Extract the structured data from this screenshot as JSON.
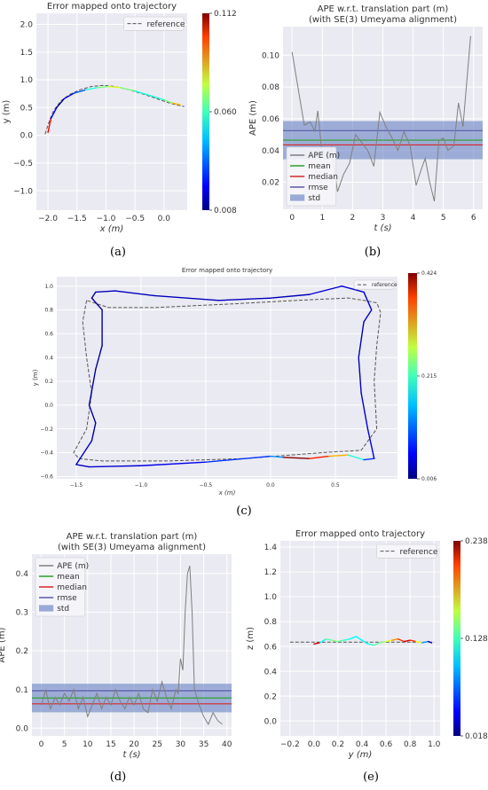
{
  "panels": [
    {
      "id": "a",
      "label": "(a)"
    },
    {
      "id": "b",
      "label": "(b)"
    },
    {
      "id": "c",
      "label": "(c)"
    },
    {
      "id": "d",
      "label": "(d)"
    },
    {
      "id": "e",
      "label": "(e)"
    }
  ],
  "chart_data": [
    {
      "id": "a",
      "type": "trajectory",
      "title": "Error mapped onto trajectory",
      "xlabel": "x (m)",
      "ylabel": "y (m)",
      "xlim": [
        -2.2,
        0.4
      ],
      "ylim": [
        -1.35,
        2.2
      ],
      "xticks": [
        -2.0,
        -1.5,
        -1.0,
        -0.5,
        0.0
      ],
      "yticks": [
        -1.0,
        -0.5,
        0.0,
        0.5,
        1.0,
        1.5,
        2.0
      ],
      "xtick_labels": [
        "−2.0",
        "−1.5",
        "−1.0",
        "−0.5",
        "0.0"
      ],
      "ytick_labels": [
        "−1.0",
        "−0.5",
        "0.0",
        "0.5",
        "1.0",
        "1.5",
        "2.0"
      ],
      "legend": [
        "reference"
      ],
      "legend_position": "top-right",
      "colorbar": {
        "min": 0.008,
        "mid": 0.06,
        "max": 0.112,
        "labels": [
          "0.008",
          "0.060",
          "0.112"
        ]
      },
      "reference": {
        "x": [
          -2.05,
          -1.98,
          -1.9,
          -1.78,
          -1.62,
          -1.45,
          -1.25,
          -1.05,
          -0.85,
          -0.6,
          -0.35,
          -0.1,
          0.1,
          0.25,
          0.35
        ],
        "y": [
          0.02,
          0.25,
          0.45,
          0.62,
          0.74,
          0.82,
          0.88,
          0.9,
          0.88,
          0.82,
          0.74,
          0.65,
          0.58,
          0.54,
          0.52
        ]
      },
      "estimate": {
        "x": [
          -2.0,
          -1.95,
          -1.85,
          -1.72,
          -1.55,
          -1.35,
          -1.15,
          -0.95,
          -0.75,
          -0.5,
          -0.25,
          0.0,
          0.15,
          0.28
        ],
        "y": [
          0.05,
          0.3,
          0.5,
          0.66,
          0.76,
          0.82,
          0.86,
          0.88,
          0.86,
          0.8,
          0.72,
          0.64,
          0.58,
          0.55
        ],
        "error": [
          0.1,
          0.02,
          0.01,
          0.02,
          0.03,
          0.05,
          0.06,
          0.07,
          0.06,
          0.05,
          0.05,
          0.06,
          0.08,
          0.11
        ]
      }
    },
    {
      "id": "b",
      "type": "line",
      "title": "APE w.r.t. translation part (m)",
      "subtitle": "(with SE(3) Umeyama alignment)",
      "xlabel": "t (s)",
      "ylabel": "APE (m)",
      "xlim": [
        -0.3,
        6.3
      ],
      "ylim": [
        0.003,
        0.118
      ],
      "xticks": [
        0,
        1,
        2,
        3,
        4,
        5,
        6
      ],
      "yticks": [
        0.02,
        0.04,
        0.06,
        0.08,
        0.1
      ],
      "xtick_labels": [
        "0",
        "1",
        "2",
        "3",
        "4",
        "5",
        "6"
      ],
      "ytick_labels": [
        "0.02",
        "0.04",
        "0.06",
        "0.08",
        "0.10"
      ],
      "legend": [
        "APE (m)",
        "mean",
        "median",
        "rmse",
        "std"
      ],
      "legend_position": "bottom-left",
      "x": [
        0,
        0.4,
        0.6,
        0.75,
        0.85,
        1.0,
        1.15,
        1.3,
        1.5,
        1.7,
        1.9,
        2.1,
        2.3,
        2.5,
        2.7,
        2.9,
        3.1,
        3.3,
        3.5,
        3.7,
        3.9,
        4.1,
        4.25,
        4.4,
        4.55,
        4.7,
        4.85,
        5.0,
        5.15,
        5.35,
        5.5,
        5.65,
        5.9
      ],
      "y": [
        0.102,
        0.056,
        0.058,
        0.052,
        0.065,
        0.036,
        0.035,
        0.042,
        0.014,
        0.025,
        0.032,
        0.05,
        0.045,
        0.04,
        0.03,
        0.064,
        0.055,
        0.048,
        0.04,
        0.052,
        0.043,
        0.018,
        0.027,
        0.035,
        0.02,
        0.008,
        0.046,
        0.048,
        0.04,
        0.043,
        0.07,
        0.055,
        0.112
      ],
      "mean": 0.0465,
      "median": 0.0435,
      "rmse": 0.0525,
      "std_band": [
        0.0345,
        0.0585
      ],
      "colors": {
        "ape": "#7f7f7f",
        "mean": "#2ca02c",
        "median": "#d62728",
        "rmse": "#5a5aa8",
        "std": "#5b78c0"
      }
    },
    {
      "id": "c",
      "type": "trajectory",
      "title": "Error mapped onto trajectory",
      "xlabel": "x (m)",
      "ylabel": "y (m)",
      "xlim": [
        -1.65,
        0.98
      ],
      "ylim": [
        -0.62,
        1.08
      ],
      "xticks": [
        -1.5,
        -1.0,
        -0.5,
        0.0,
        0.5
      ],
      "yticks": [
        -0.6,
        -0.4,
        -0.2,
        0.0,
        0.2,
        0.4,
        0.6,
        0.8,
        1.0
      ],
      "xtick_labels": [
        "−1.5",
        "−1.0",
        "−0.5",
        "0.0",
        "0.5"
      ],
      "ytick_labels": [
        "−0.6",
        "−0.4",
        "−0.2",
        "0.0",
        "0.2",
        "0.4",
        "0.6",
        "0.8",
        "1.0"
      ],
      "legend": [
        "reference"
      ],
      "legend_position": "top-right",
      "colorbar": {
        "min": 0.006,
        "mid": 0.215,
        "max": 0.424,
        "labels": [
          "0.006",
          "0.215",
          "0.424"
        ]
      },
      "reference": {
        "x": [
          -1.42,
          -1.45,
          -1.42,
          -1.38,
          -1.42,
          -1.52,
          -1.48,
          -1.3,
          -0.8,
          -0.2,
          0.4,
          0.7,
          0.82,
          0.8,
          0.82,
          0.85,
          0.82,
          0.72,
          0.6,
          0.2,
          -0.3,
          -0.9,
          -1.25,
          -1.42
        ],
        "y": [
          0.88,
          0.7,
          0.4,
          0.1,
          -0.2,
          -0.4,
          -0.45,
          -0.47,
          -0.47,
          -0.45,
          -0.4,
          -0.38,
          -0.2,
          0.2,
          0.5,
          0.78,
          0.86,
          0.88,
          0.9,
          0.88,
          0.85,
          0.82,
          0.82,
          0.88
        ]
      },
      "estimate": {
        "x": [
          -1.38,
          -1.3,
          -1.3,
          -1.35,
          -1.4,
          -1.35,
          -1.38,
          -1.5,
          -1.4,
          -1.0,
          -0.5,
          0.0,
          0.1,
          0.3,
          0.45,
          0.6,
          0.72,
          0.8,
          0.75,
          0.7,
          0.68,
          0.72,
          0.78,
          0.72,
          0.55,
          0.3,
          0.0,
          -0.4,
          -0.9,
          -1.2,
          -1.35,
          -1.38
        ],
        "y": [
          0.9,
          0.8,
          0.5,
          0.3,
          0.0,
          -0.15,
          -0.3,
          -0.5,
          -0.52,
          -0.51,
          -0.48,
          -0.43,
          -0.44,
          -0.45,
          -0.43,
          -0.42,
          -0.46,
          -0.45,
          -0.2,
          0.1,
          0.4,
          0.7,
          0.8,
          0.95,
          1.0,
          0.93,
          0.9,
          0.88,
          0.92,
          0.96,
          0.95,
          0.9
        ],
        "error": [
          0.02,
          0.02,
          0.02,
          0.02,
          0.02,
          0.02,
          0.03,
          0.03,
          0.04,
          0.05,
          0.08,
          0.12,
          0.42,
          0.36,
          0.3,
          0.18,
          0.08,
          0.05,
          0.04,
          0.03,
          0.03,
          0.04,
          0.04,
          0.04,
          0.04,
          0.03,
          0.03,
          0.03,
          0.03,
          0.03,
          0.02,
          0.02
        ]
      }
    },
    {
      "id": "d",
      "type": "line",
      "title": "APE w.r.t. translation part (m)",
      "subtitle": "(with SE(3) Umeyama alignment)",
      "xlabel": "t (s)",
      "ylabel": "APE (m)",
      "xlim": [
        -2,
        41
      ],
      "ylim": [
        -0.02,
        0.45
      ],
      "xticks": [
        0,
        5,
        10,
        15,
        20,
        25,
        30,
        35,
        40
      ],
      "yticks": [
        0.0,
        0.1,
        0.2,
        0.3,
        0.4
      ],
      "xtick_labels": [
        "0",
        "5",
        "10",
        "15",
        "20",
        "25",
        "30",
        "35",
        "40"
      ],
      "ytick_labels": [
        "0.0",
        "0.1",
        "0.2",
        "0.3",
        "0.4"
      ],
      "legend": [
        "APE (m)",
        "mean",
        "median",
        "rmse",
        "std"
      ],
      "legend_position": "top-left",
      "x": [
        0,
        1,
        1.5,
        2,
        3,
        4,
        5,
        6,
        7,
        8,
        9,
        10,
        11,
        12,
        13,
        14,
        15,
        16,
        17,
        18,
        19,
        20,
        21,
        22,
        23,
        24,
        25,
        26,
        27,
        28,
        29,
        29.5,
        30,
        30.5,
        31,
        31.5,
        32,
        32.5,
        33,
        34,
        35,
        36,
        37,
        38,
        39
      ],
      "y": [
        0.06,
        0.1,
        0.07,
        0.05,
        0.08,
        0.06,
        0.09,
        0.07,
        0.1,
        0.05,
        0.08,
        0.03,
        0.06,
        0.09,
        0.05,
        0.08,
        0.06,
        0.1,
        0.07,
        0.05,
        0.08,
        0.06,
        0.09,
        0.05,
        0.04,
        0.1,
        0.07,
        0.12,
        0.08,
        0.05,
        0.1,
        0.09,
        0.18,
        0.15,
        0.3,
        0.4,
        0.42,
        0.3,
        0.1,
        0.06,
        0.03,
        0.01,
        0.04,
        0.02,
        0.01
      ],
      "mean": 0.078,
      "median": 0.063,
      "rmse": 0.097,
      "std_band": [
        0.041,
        0.115
      ],
      "colors": {
        "ape": "#7f7f7f",
        "mean": "#2ca02c",
        "median": "#d62728",
        "rmse": "#5a5aa8",
        "std": "#5b78c0"
      }
    },
    {
      "id": "e",
      "type": "trajectory",
      "title": "Error mapped onto trajectory",
      "xlabel": "y (m)",
      "ylabel": "z (m)",
      "xlim": [
        -0.28,
        1.05
      ],
      "ylim": [
        -0.12,
        1.45
      ],
      "xticks": [
        -0.2,
        0.0,
        0.2,
        0.4,
        0.6,
        0.8,
        1.0
      ],
      "yticks": [
        0.0,
        0.2,
        0.4,
        0.6,
        0.8,
        1.0,
        1.2,
        1.4
      ],
      "xtick_labels": [
        "−0.2",
        "0.0",
        "0.2",
        "0.4",
        "0.6",
        "0.8",
        "1.0"
      ],
      "ytick_labels": [
        "0.0",
        "0.2",
        "0.4",
        "0.6",
        "0.8",
        "1.0",
        "1.2",
        "1.4"
      ],
      "legend": [
        "reference"
      ],
      "legend_position": "top-right",
      "colorbar": {
        "min": 0.018,
        "mid": 0.128,
        "max": 0.238,
        "labels": [
          "0.018",
          "0.128",
          "0.238"
        ]
      },
      "reference": {
        "x": [
          -0.2,
          0.0,
          0.2,
          0.4,
          0.6,
          0.8,
          1.0
        ],
        "y": [
          0.635,
          0.635,
          0.635,
          0.635,
          0.635,
          0.635,
          0.635
        ]
      },
      "estimate": {
        "x": [
          0.0,
          0.05,
          0.1,
          0.15,
          0.2,
          0.25,
          0.3,
          0.35,
          0.4,
          0.45,
          0.5,
          0.55,
          0.6,
          0.65,
          0.7,
          0.75,
          0.8,
          0.85,
          0.9,
          0.95,
          0.98
        ],
        "y": [
          0.62,
          0.63,
          0.66,
          0.65,
          0.64,
          0.65,
          0.66,
          0.68,
          0.65,
          0.62,
          0.61,
          0.63,
          0.64,
          0.65,
          0.66,
          0.64,
          0.65,
          0.64,
          0.63,
          0.64,
          0.63
        ],
        "error": [
          0.22,
          0.1,
          0.12,
          0.13,
          0.12,
          0.11,
          0.1,
          0.1,
          0.1,
          0.11,
          0.12,
          0.13,
          0.15,
          0.18,
          0.2,
          0.22,
          0.2,
          0.15,
          0.08,
          0.03,
          0.05
        ]
      }
    }
  ]
}
